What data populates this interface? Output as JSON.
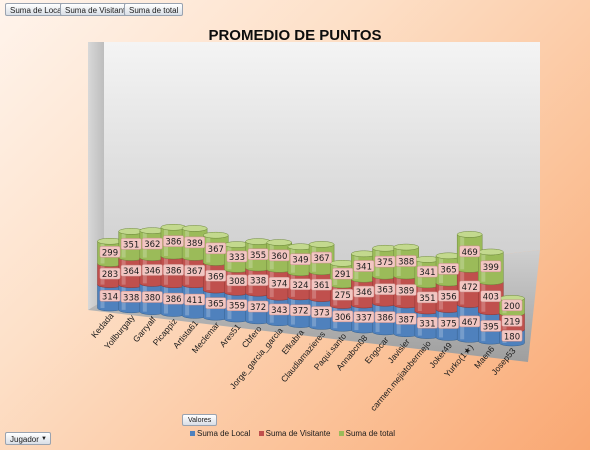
{
  "field_buttons": {
    "local": "Suma de Local",
    "visitante": "Suma de Visitante",
    "total": "Suma de total"
  },
  "valores_button": "Valores",
  "filter": {
    "label": "Jugador"
  },
  "colors": {
    "local": "#4f81bd",
    "visitante": "#c0504d",
    "total": "#9bbb59"
  },
  "chart_data": {
    "type": "bar",
    "stacked": true,
    "title": "PROMEDIO DE PUNTOS",
    "categories": [
      "Kedada",
      "Yollburgaty",
      "Garryalf",
      "Picappiz",
      "Artista61",
      "Meclemar",
      "Ares51",
      "Cbfero",
      "Jorge_garcia_garcia",
      "Efkabra",
      "Claudiamazieres",
      "Paqui.santo",
      "Annabcn08",
      "Engocar",
      "Javisier",
      "carmen.mejiatobermejo",
      "Joker49",
      "Yurko(1★)",
      "Maen6",
      "Josep53"
    ],
    "series": [
      {
        "name": "Suma de Local",
        "values": [
          314,
          338,
          380,
          386,
          411,
          365,
          359,
          372,
          343,
          372,
          373,
          306,
          337,
          386,
          387,
          331,
          375,
          467,
          395,
          180
        ]
      },
      {
        "name": "Suma de Visitante",
        "values": [
          283,
          364,
          346,
          386,
          367,
          369,
          308,
          338,
          374,
          324,
          361,
          275,
          346,
          363,
          389,
          351,
          356,
          472,
          403,
          219
        ]
      },
      {
        "name": "Suma de total",
        "values": [
          299,
          351,
          362,
          386,
          389,
          367,
          333,
          355,
          360,
          349,
          367,
          291,
          341,
          375,
          388,
          341,
          365,
          469,
          399,
          200
        ]
      }
    ],
    "legend_position": "bottom"
  }
}
